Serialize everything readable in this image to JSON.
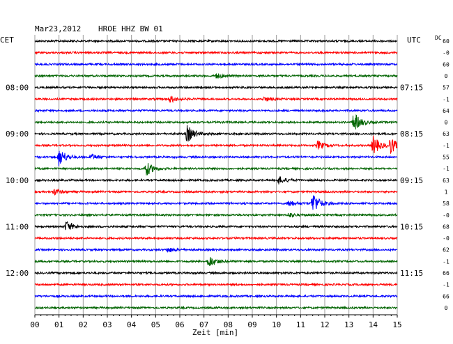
{
  "header": {
    "date": "Mar23,2012",
    "station": "HROE HHZ BW 01",
    "left_tz": "CET",
    "right_tz": "UTC",
    "dc_label": "DC"
  },
  "chart_data": {
    "type": "line",
    "xlabel": "Zeit [min]",
    "xlim": [
      0,
      15
    ],
    "x_ticks": [
      "00",
      "01",
      "02",
      "03",
      "04",
      "05",
      "06",
      "07",
      "08",
      "09",
      "10",
      "11",
      "12",
      "13",
      "14",
      "15"
    ],
    "trace_colors": [
      "#000000",
      "#ff0000",
      "#0000ff",
      "#006400"
    ],
    "left_time_labels": [
      {
        "trace": 4,
        "label": "08:00"
      },
      {
        "trace": 8,
        "label": "09:00"
      },
      {
        "trace": 12,
        "label": "10:00"
      },
      {
        "trace": 16,
        "label": "11:00"
      },
      {
        "trace": 20,
        "label": "12:00"
      }
    ],
    "right_time_labels": [
      {
        "trace": 4,
        "label": "07:15"
      },
      {
        "trace": 8,
        "label": "08:15"
      },
      {
        "trace": 12,
        "label": "09:15"
      },
      {
        "trace": 16,
        "label": "10:15"
      },
      {
        "trace": 20,
        "label": "11:15"
      }
    ],
    "dc_offsets": [
      "60",
      "-0",
      "60",
      "0",
      "57",
      "-1",
      "64",
      "0",
      "63",
      "-1",
      "55",
      "-1",
      "63",
      "1",
      "58",
      "-0",
      "68",
      "-0",
      "62",
      "-1",
      "66",
      "-1",
      "66",
      "0"
    ],
    "events": [
      {
        "trace": 3,
        "minute": 7.5,
        "amp": 0.4
      },
      {
        "trace": 5,
        "minute": 5.6,
        "amp": 0.5
      },
      {
        "trace": 5,
        "minute": 9.5,
        "amp": 0.35
      },
      {
        "trace": 7,
        "minute": 13.2,
        "amp": 1.6
      },
      {
        "trace": 8,
        "minute": 6.3,
        "amp": 1.4
      },
      {
        "trace": 9,
        "minute": 11.7,
        "amp": 0.7
      },
      {
        "trace": 9,
        "minute": 14.0,
        "amp": 1.5
      },
      {
        "trace": 9,
        "minute": 14.7,
        "amp": 1.3
      },
      {
        "trace": 10,
        "minute": 1.0,
        "amp": 1.5
      },
      {
        "trace": 10,
        "minute": 2.3,
        "amp": 0.5
      },
      {
        "trace": 11,
        "minute": 4.6,
        "amp": 1.2
      },
      {
        "trace": 12,
        "minute": 10.1,
        "amp": 0.6
      },
      {
        "trace": 13,
        "minute": 0.8,
        "amp": 0.5
      },
      {
        "trace": 14,
        "minute": 11.5,
        "amp": 1.8
      },
      {
        "trace": 14,
        "minute": 10.5,
        "amp": 0.6
      },
      {
        "trace": 15,
        "minute": 10.5,
        "amp": 0.4
      },
      {
        "trace": 16,
        "minute": 1.3,
        "amp": 0.9
      },
      {
        "trace": 18,
        "minute": 5.5,
        "amp": 0.4
      },
      {
        "trace": 19,
        "minute": 7.2,
        "amp": 1.0
      }
    ]
  }
}
